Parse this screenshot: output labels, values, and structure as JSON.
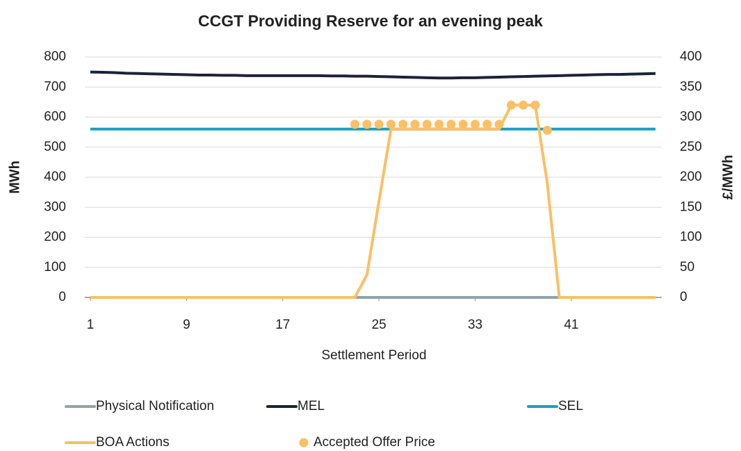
{
  "chart_data": {
    "type": "line",
    "title": "CCGT Providing Reserve for an evening peak",
    "xlabel": "Settlement Period",
    "ylabel": "MWh",
    "y2label": "£/MWh",
    "x": [
      1,
      2,
      3,
      4,
      5,
      6,
      7,
      8,
      9,
      10,
      11,
      12,
      13,
      14,
      15,
      16,
      17,
      18,
      19,
      20,
      21,
      22,
      23,
      24,
      25,
      26,
      27,
      28,
      29,
      30,
      31,
      32,
      33,
      34,
      35,
      36,
      37,
      38,
      39,
      40,
      41,
      42,
      43,
      44,
      45,
      46,
      47,
      48
    ],
    "xlim": [
      1,
      48
    ],
    "xticks": [
      1,
      9,
      17,
      25,
      33,
      41
    ],
    "ylim": [
      0,
      800
    ],
    "yticks": [
      0,
      100,
      200,
      300,
      400,
      500,
      600,
      700,
      800
    ],
    "y2lim": [
      0,
      400
    ],
    "y2ticks": [
      0,
      50,
      100,
      150,
      200,
      250,
      300,
      350,
      400
    ],
    "grid": true,
    "legend": "bottom",
    "series": [
      {
        "name": "Physical Notification",
        "color": "#8fa3ab",
        "kind": "line",
        "values": [
          0,
          0,
          0,
          0,
          0,
          0,
          0,
          0,
          0,
          0,
          0,
          0,
          0,
          0,
          0,
          0,
          0,
          0,
          0,
          0,
          0,
          0,
          0,
          0,
          0,
          0,
          0,
          0,
          0,
          0,
          0,
          0,
          0,
          0,
          0,
          0,
          0,
          0,
          0,
          0,
          0,
          0,
          0,
          0,
          0,
          0,
          0,
          0
        ]
      },
      {
        "name": "MEL",
        "color": "#1b2238",
        "kind": "line",
        "values": [
          750,
          749,
          748,
          746,
          745,
          744,
          743,
          742,
          741,
          740,
          740,
          739,
          739,
          738,
          738,
          738,
          738,
          738,
          738,
          738,
          737,
          737,
          736,
          736,
          735,
          734,
          733,
          732,
          731,
          730,
          730,
          731,
          731,
          732,
          733,
          734,
          735,
          736,
          737,
          738,
          739,
          740,
          741,
          742,
          742,
          743,
          744,
          745
        ]
      },
      {
        "name": "SEL",
        "color": "#1aa0c0",
        "kind": "line",
        "values": [
          560,
          560,
          560,
          560,
          560,
          560,
          560,
          560,
          560,
          560,
          560,
          560,
          560,
          560,
          560,
          560,
          560,
          560,
          560,
          560,
          560,
          560,
          560,
          560,
          560,
          560,
          560,
          560,
          560,
          560,
          560,
          560,
          560,
          560,
          560,
          560,
          560,
          560,
          560,
          560,
          560,
          560,
          560,
          560,
          560,
          560,
          560,
          560
        ]
      },
      {
        "name": "BOA Actions",
        "color": "#fbbf64",
        "kind": "line",
        "values": [
          0,
          0,
          0,
          0,
          0,
          0,
          0,
          0,
          0,
          0,
          0,
          0,
          0,
          0,
          0,
          0,
          0,
          0,
          0,
          0,
          0,
          0,
          0,
          75,
          320,
          560,
          560,
          560,
          560,
          560,
          560,
          560,
          560,
          560,
          560,
          640,
          640,
          640,
          380,
          0,
          0,
          0,
          0,
          0,
          0,
          0,
          0,
          0
        ]
      },
      {
        "name": "Accepted Offer Price",
        "color": "#fbbf64",
        "kind": "dots",
        "axis": "y2",
        "values": [
          null,
          null,
          null,
          null,
          null,
          null,
          null,
          null,
          null,
          null,
          null,
          null,
          null,
          null,
          null,
          null,
          null,
          null,
          null,
          null,
          null,
          null,
          288,
          288,
          288,
          288,
          288,
          288,
          288,
          288,
          288,
          288,
          288,
          288,
          288,
          320,
          320,
          320,
          278,
          null,
          null,
          null,
          null,
          null,
          null,
          null,
          null,
          null
        ]
      }
    ]
  }
}
